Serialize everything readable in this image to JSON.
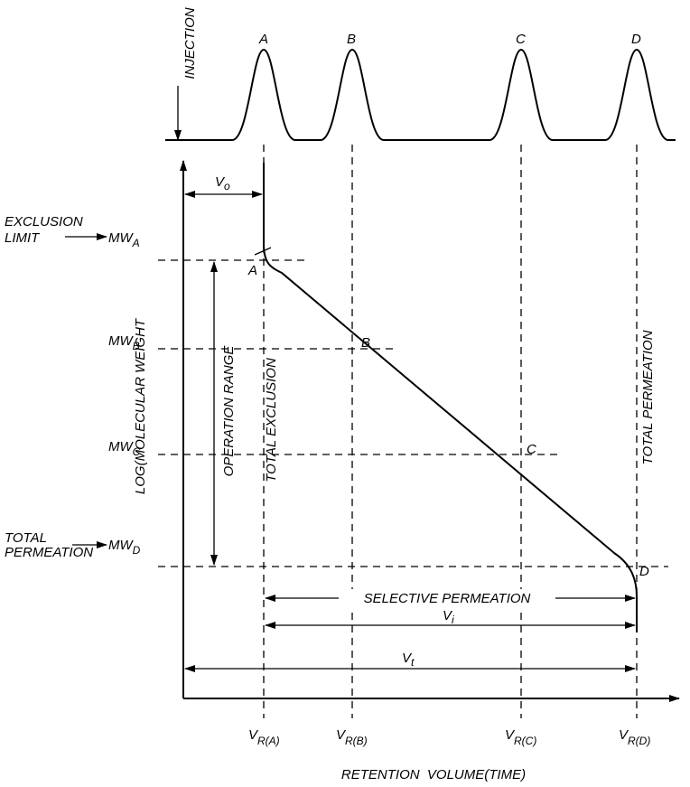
{
  "injection": "INJECTION",
  "peaks": [
    "A",
    "B",
    "C",
    "D"
  ],
  "curve_points": [
    "A",
    "B",
    "C",
    "D"
  ],
  "v0": {
    "base": "V",
    "sub": "o"
  },
  "exclusion_limit": [
    "EXCLUSION",
    "LIMIT"
  ],
  "total_permeation_left": [
    "TOTAL",
    "PERMEATION"
  ],
  "mw_labels": [
    {
      "base": "MW",
      "sub": "A"
    },
    {
      "base": "MW",
      "sub": "B"
    },
    {
      "base": "MW",
      "sub": "C"
    },
    {
      "base": "MW",
      "sub": "D"
    }
  ],
  "operation_range": "OPERATION RANGE",
  "total_exclusion": "TOTAL EXCLUSION",
  "total_permeation_right": "TOTAL PERMEATION",
  "y_axis_label": "LOG(MOLECULAR WEIGHT",
  "selective_permeation": "SELECTIVE PERMEATION",
  "vi": {
    "base": "V",
    "sub": "i"
  },
  "vt": {
    "base": "V",
    "sub": "t"
  },
  "x_labels": [
    {
      "base": "V",
      "sub": "R(A)"
    },
    {
      "base": "V",
      "sub": "R(B)"
    },
    {
      "base": "V",
      "sub": "R(C)"
    },
    {
      "base": "V",
      "sub": "R(D)"
    }
  ],
  "x_axis_label": "RETENTION  VOLUME(TIME)"
}
